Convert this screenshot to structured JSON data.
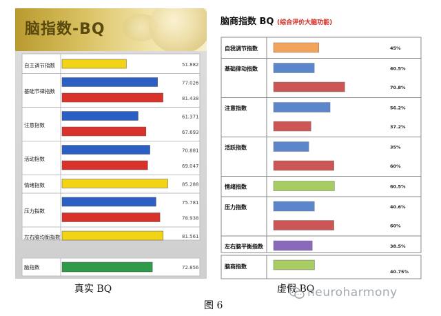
{
  "colors": {
    "yellow": "#f2d316",
    "blue": "#2b5fc4",
    "red": "#d8322a",
    "green": "#2f9a4a",
    "fake_orange": "#f2a45c",
    "fake_blue": "#5b86cc",
    "fake_red": "#cc5656",
    "fake_green": "#a7cc62",
    "fake_purple": "#8a68bb"
  },
  "left": {
    "title": "脑指数-BQ",
    "caption": "真实 BQ"
  },
  "right": {
    "title": "脑商指数 BQ",
    "subtitle": "(综合评价大脑功能)",
    "caption": "虚假 BQ"
  },
  "figure_caption": "图 6",
  "watermark": "neuroharmony",
  "chart_data": [
    {
      "type": "bar",
      "orientation": "horizontal",
      "title": "脑指数-BQ",
      "xlim": [
        0,
        100
      ],
      "groups": [
        {
          "label": "自主调节指数",
          "bars": [
            {
              "value": 51.882,
              "label": "51.882",
              "color": "yellow"
            }
          ]
        },
        {
          "label": "基础节律指数",
          "bars": [
            {
              "value": 77.026,
              "label": "77.026",
              "color": "blue"
            },
            {
              "value": 81.438,
              "label": "81.438",
              "color": "red"
            }
          ]
        },
        {
          "label": "注意指数",
          "bars": [
            {
              "value": 61.371,
              "label": "61.371",
              "color": "blue"
            },
            {
              "value": 67.693,
              "label": "67.693",
              "color": "red"
            }
          ]
        },
        {
          "label": "活动指数",
          "bars": [
            {
              "value": 70.881,
              "label": "70.881",
              "color": "blue"
            },
            {
              "value": 69.047,
              "label": "69.047",
              "color": "red"
            }
          ]
        },
        {
          "label": "情绪指数",
          "bars": [
            {
              "value": 85.288,
              "label": "85.288",
              "color": "yellow"
            }
          ]
        },
        {
          "label": "压力指数",
          "bars": [
            {
              "value": 75.781,
              "label": "75.781",
              "color": "blue"
            },
            {
              "value": 78.938,
              "label": "78.938",
              "color": "red"
            }
          ]
        },
        {
          "label": "左右脑均衡指数",
          "bars": [
            {
              "value": 81.561,
              "label": "81.561",
              "color": "yellow"
            }
          ]
        }
      ],
      "total": {
        "label": "脑指数",
        "value": 72.856,
        "value_label": "72.856",
        "color": "green"
      }
    },
    {
      "type": "bar",
      "orientation": "horizontal",
      "title": "脑商指数 BQ",
      "subtitle": "(综合评价大脑功能)",
      "xlim": [
        0,
        100
      ],
      "groups": [
        {
          "label": "自我调节指数",
          "bars": [
            {
              "value": 45,
              "label": "45%",
              "color": "fake_orange"
            }
          ]
        },
        {
          "label": "基础律动指数",
          "bars": [
            {
              "value": 40.5,
              "label": "40.5%",
              "color": "fake_blue"
            },
            {
              "value": 70.8,
              "label": "70.8%",
              "color": "fake_red"
            }
          ]
        },
        {
          "label": "注意指数",
          "bars": [
            {
              "value": 56.2,
              "label": "56.2%",
              "color": "fake_blue"
            },
            {
              "value": 37.2,
              "label": "37.2%",
              "color": "fake_red"
            }
          ]
        },
        {
          "label": "活跃指数",
          "bars": [
            {
              "value": 35,
              "label": "35%",
              "color": "fake_blue"
            },
            {
              "value": 60,
              "label": "60%",
              "color": "fake_red"
            }
          ]
        },
        {
          "label": "情绪指数",
          "bars": [
            {
              "value": 60.5,
              "label": "60.5%",
              "color": "fake_green"
            }
          ]
        },
        {
          "label": "压力指数",
          "bars": [
            {
              "value": 40.6,
              "label": "40.6%",
              "color": "fake_blue"
            },
            {
              "value": 60,
              "label": "60%",
              "color": "fake_red"
            }
          ]
        },
        {
          "label": "左右脑平衡指数",
          "bars": [
            {
              "value": 38.5,
              "label": "38.5%",
              "color": "fake_purple"
            }
          ]
        }
      ],
      "total": {
        "label": "脑商指数",
        "value": 40.75,
        "value_label": "40.75%",
        "color": "fake_green"
      }
    }
  ]
}
